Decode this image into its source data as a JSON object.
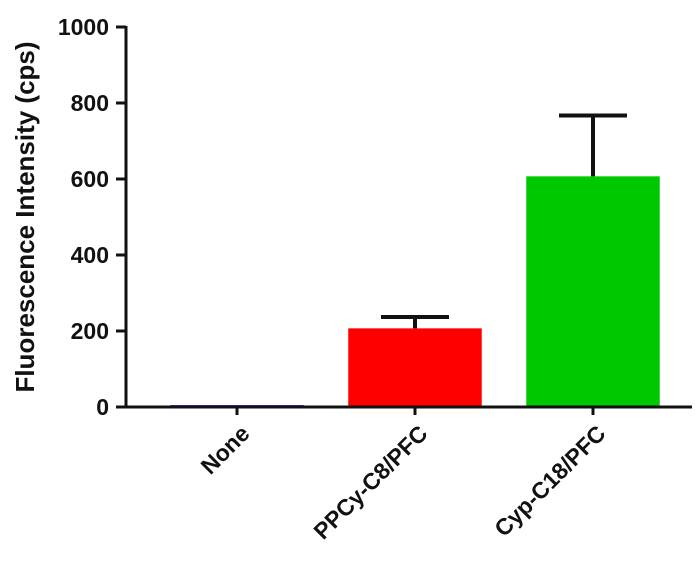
{
  "chart_data": {
    "type": "bar",
    "title": "",
    "xlabel": "",
    "ylabel": "Fluorescence Intensity (cps)",
    "ylim": [
      0,
      1000
    ],
    "yticks": [
      0,
      200,
      400,
      600,
      800,
      1000
    ],
    "grid": false,
    "categories": [
      "None",
      "PPCy-C8/PFC",
      "Cyp-C18/PFC"
    ],
    "values": [
      5,
      207,
      607
    ],
    "errors": [
      0,
      30,
      160
    ],
    "colors": [
      "#1010c8",
      "#ff0000",
      "#00c800"
    ]
  }
}
